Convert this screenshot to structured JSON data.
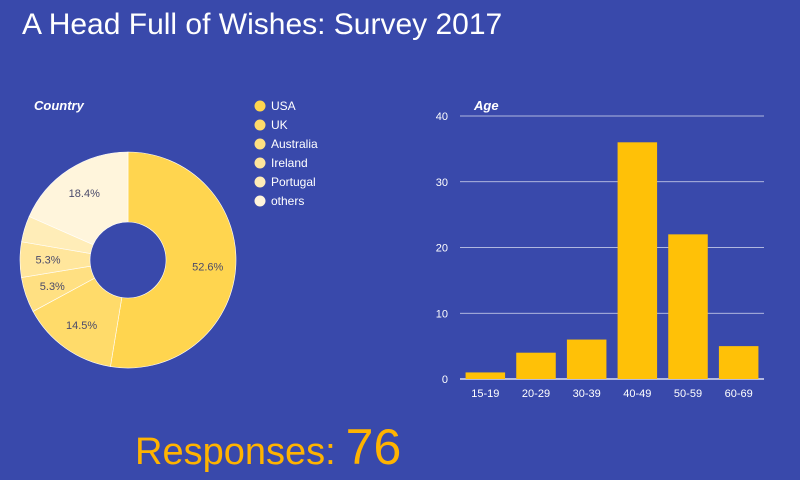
{
  "title": "A Head Full of Wishes: Survey 2017",
  "colors": {
    "background": "#3949ab",
    "accent": "#ffb300",
    "bar": "#ffc107",
    "pie": [
      "#ffd54f",
      "#ffdb6a",
      "#ffe082",
      "#ffe69c",
      "#ffedb8",
      "#fff5dc"
    ]
  },
  "chart_data": [
    {
      "type": "pie",
      "title": "Country",
      "categories": [
        "USA",
        "UK",
        "Australia",
        "Ireland",
        "Portugal",
        "others"
      ],
      "values": [
        52.6,
        14.5,
        5.3,
        5.3,
        3.9,
        18.4
      ],
      "data_labels": [
        "52.6%",
        "14.5%",
        "5.3%",
        "5.3%",
        "",
        "18.4%"
      ],
      "legend": "right",
      "donut": true
    },
    {
      "type": "bar",
      "title": "Age",
      "categories": [
        "15-19",
        "20-29",
        "30-39",
        "40-49",
        "50-59",
        "60-69"
      ],
      "values": [
        1,
        4,
        6,
        36,
        22,
        5
      ],
      "ylim": [
        0,
        40
      ],
      "yticks": [
        0,
        10,
        20,
        30,
        40
      ],
      "grid": true,
      "xlabel": "",
      "ylabel": ""
    }
  ],
  "responses": {
    "label": "Responses:",
    "value": "76"
  }
}
